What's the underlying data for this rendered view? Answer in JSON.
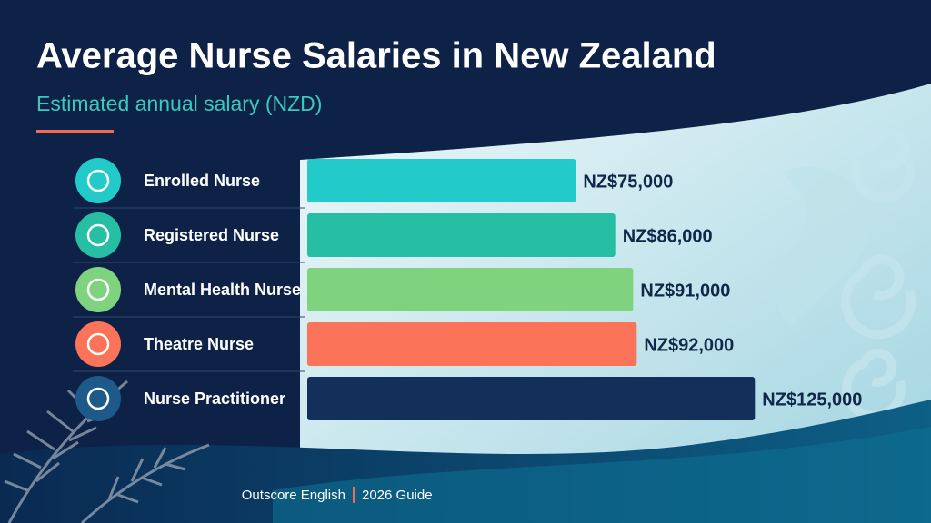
{
  "chart_data": {
    "type": "bar",
    "title": "Average Nurse Salaries in New Zealand",
    "subtitle": "Estimated annual salary (NZD)",
    "categories": [
      "Enrolled Nurse",
      "Registered Nurse",
      "Mental Health Nurse",
      "Theatre Nurse",
      "Nurse Practitioner"
    ],
    "values": [
      75000,
      86000,
      91000,
      92000,
      125000
    ],
    "value_labels": [
      "NZ$75,000",
      "NZ$86,000",
      "NZ$91,000",
      "NZ$92,000",
      "NZ$125,000"
    ],
    "colors": [
      "#22cbc9",
      "#26bfa4",
      "#80d37e",
      "#fb7358",
      "#12305a"
    ],
    "xlim": [
      0,
      130000
    ],
    "footer": [
      "Outscore English",
      "2026 Guide"
    ]
  }
}
